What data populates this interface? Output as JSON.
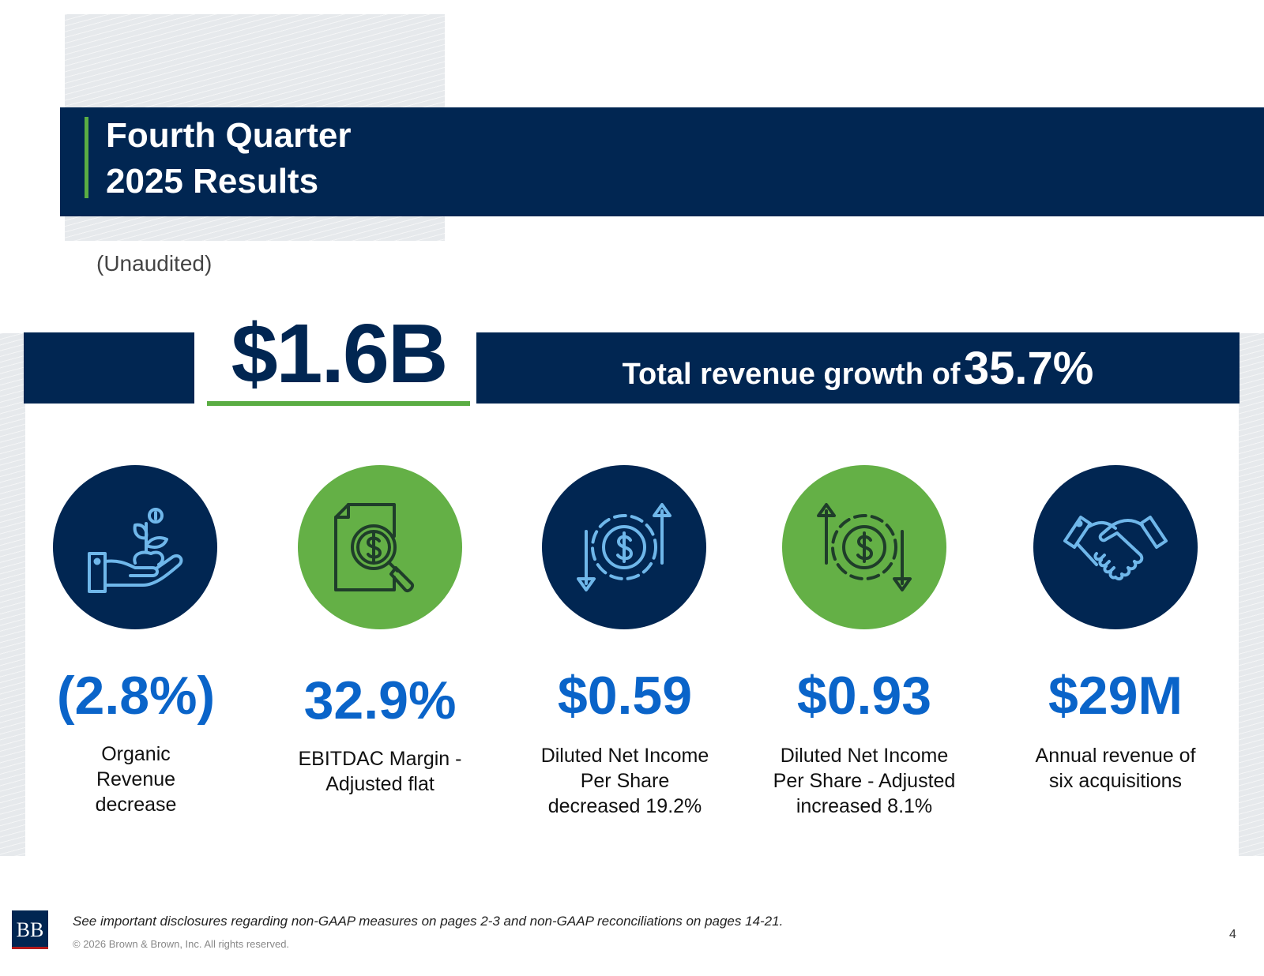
{
  "header": {
    "title_line1": "Fourth Quarter",
    "title_line2": "2025 Results",
    "subtitle": "(Unaudited)"
  },
  "headline": {
    "value": "$1.6B",
    "growth_label": "Total revenue growth of",
    "growth_value": "35.7%"
  },
  "metrics": [
    {
      "value": "(2.8%)",
      "label_lines": [
        "Organic",
        "Revenue",
        "decrease"
      ],
      "icon": "plant-in-hand-icon",
      "circle_color": "#012652"
    },
    {
      "value": "32.9%",
      "label_lines": [
        "EBITDAC Margin -",
        "Adjusted flat"
      ],
      "icon": "document-dollar-magnifier-icon",
      "circle_color": "#64b046"
    },
    {
      "value": "$0.59",
      "label_lines": [
        "Diluted Net Income",
        "Per Share",
        "decreased 19.2%"
      ],
      "icon": "dollar-cycle-arrows-icon",
      "circle_color": "#012652"
    },
    {
      "value": "$0.93",
      "label_lines": [
        "Diluted Net Income",
        "Per Share - Adjusted",
        "increased 8.1%"
      ],
      "icon": "dollar-cycle-arrows-icon",
      "circle_color": "#64b046"
    },
    {
      "value": "$29M",
      "label_lines": [
        "Annual revenue of",
        "six acquisitions"
      ],
      "icon": "handshake-icon",
      "circle_color": "#012652"
    }
  ],
  "footer": {
    "logo_text": "BB",
    "disclosure": "See important disclosures regarding non-GAAP measures on pages 2-3 and non-GAAP reconciliations on pages 14-21.",
    "copyright": "© 2026 Brown & Brown, Inc. All rights reserved.",
    "page_number": "4"
  },
  "colors": {
    "navy": "#012652",
    "green": "#64b046",
    "accent_green": "#5aad43",
    "value_blue": "#0a64c9",
    "icon_light_blue": "#6fb7ea",
    "icon_dark": "#1f3d2a"
  }
}
